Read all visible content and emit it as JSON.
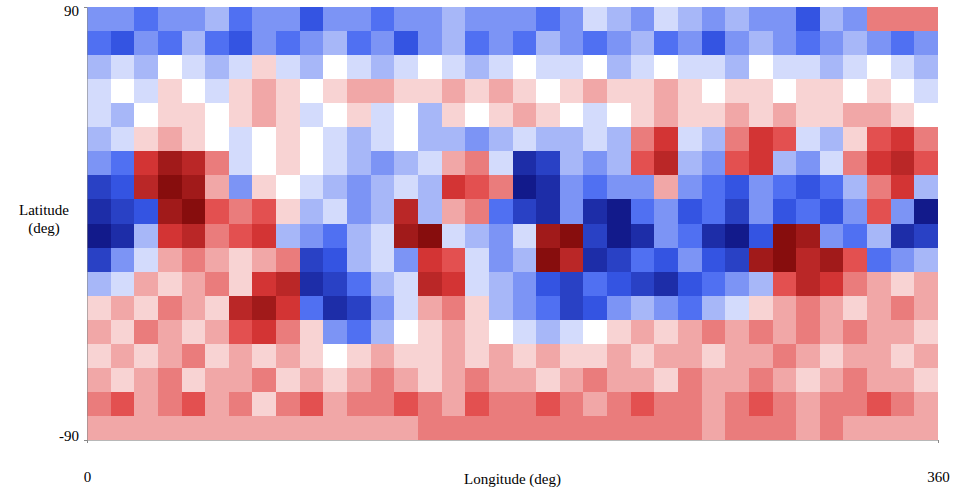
{
  "chart_data": {
    "type": "heatmap",
    "xlabel": "Longitude (deg)",
    "ylabel": "Latitude (deg)",
    "xlim": [
      0,
      360
    ],
    "ylim": [
      -90,
      90
    ],
    "xticks": [
      0,
      360
    ],
    "yticks": [
      -90,
      90
    ],
    "x_edges": [
      0,
      10,
      20,
      30,
      40,
      50,
      60,
      70,
      80,
      90,
      100,
      110,
      120,
      130,
      140,
      150,
      160,
      170,
      180,
      190,
      200,
      210,
      220,
      230,
      240,
      250,
      260,
      270,
      280,
      290,
      300,
      310,
      320,
      330,
      340,
      350,
      360
    ],
    "y_edges": [
      90,
      80,
      70,
      60,
      50,
      40,
      30,
      20,
      10,
      0,
      -10,
      -20,
      -30,
      -40,
      -50,
      -60,
      -70,
      -80,
      -90
    ],
    "color_range": [
      -9,
      9
    ],
    "values": [
      [
        -3,
        -3,
        -4,
        -3,
        -3,
        -2,
        -4,
        -3,
        -3,
        -5,
        -3,
        -3,
        -4,
        -3,
        -3,
        -2,
        -3,
        -3,
        -3,
        -4,
        -3,
        -1,
        -2,
        -3,
        -1,
        -2,
        -3,
        -2,
        -3,
        -3,
        -5,
        -2,
        -3,
        3,
        3,
        3
      ],
      [
        -4,
        -5,
        -3,
        -4,
        -2,
        -4,
        -5,
        -3,
        -4,
        -3,
        -2,
        -4,
        -3,
        -5,
        -3,
        -2,
        -4,
        -3,
        -4,
        -2,
        -3,
        -4,
        -3,
        -2,
        -4,
        -3,
        -5,
        -3,
        -2,
        -3,
        -4,
        -3,
        -2,
        -3,
        -4,
        -3
      ],
      [
        -2,
        -1,
        -2,
        0,
        -1,
        -2,
        -1,
        1,
        -1,
        -2,
        0,
        -1,
        -2,
        -1,
        0,
        -1,
        -2,
        -1,
        0,
        -1,
        -1,
        0,
        -2,
        -1,
        0,
        -1,
        -1,
        -2,
        0,
        -1,
        -1,
        -2,
        -1,
        0,
        -1,
        -2
      ],
      [
        -1,
        0,
        -1,
        1,
        0,
        -1,
        1,
        2,
        1,
        0,
        1,
        2,
        2,
        1,
        1,
        2,
        1,
        2,
        1,
        0,
        1,
        2,
        1,
        1,
        2,
        1,
        0,
        1,
        1,
        0,
        1,
        1,
        0,
        1,
        0,
        -1
      ],
      [
        -1,
        -2,
        0,
        1,
        1,
        0,
        1,
        2,
        1,
        -1,
        0,
        1,
        -1,
        0,
        -2,
        1,
        0,
        1,
        2,
        1,
        0,
        -1,
        0,
        1,
        2,
        1,
        1,
        2,
        1,
        2,
        1,
        1,
        2,
        2,
        1,
        0
      ],
      [
        -2,
        -1,
        1,
        2,
        1,
        0,
        -1,
        0,
        1,
        0,
        -1,
        -2,
        -1,
        0,
        -2,
        -2,
        -3,
        -2,
        -1,
        -2,
        -2,
        -1,
        -2,
        3,
        5,
        -1,
        -2,
        3,
        5,
        4,
        -1,
        -2,
        1,
        4,
        5,
        3
      ],
      [
        -3,
        -4,
        5,
        7,
        6,
        3,
        -1,
        0,
        1,
        0,
        -1,
        -2,
        -3,
        -2,
        -1,
        2,
        3,
        -1,
        -7,
        -6,
        -2,
        -3,
        -2,
        4,
        6,
        -2,
        -3,
        4,
        5,
        -2,
        -3,
        -1,
        3,
        5,
        6,
        4
      ],
      [
        -6,
        -5,
        6,
        8,
        7,
        2,
        -3,
        1,
        0,
        -1,
        -2,
        -3,
        -2,
        -1,
        -2,
        5,
        4,
        3,
        -8,
        -7,
        -3,
        -4,
        -3,
        -3,
        2,
        -3,
        -4,
        -5,
        -3,
        -4,
        -5,
        -4,
        -2,
        3,
        5,
        -2
      ],
      [
        -7,
        -6,
        -5,
        7,
        8,
        4,
        3,
        4,
        1,
        -2,
        -1,
        -3,
        -2,
        6,
        -2,
        2,
        3,
        -4,
        -6,
        -7,
        -3,
        -7,
        -8,
        -4,
        -3,
        -5,
        -4,
        -6,
        -3,
        -5,
        -4,
        -5,
        -3,
        4,
        -3,
        -8
      ],
      [
        -8,
        -7,
        -2,
        5,
        6,
        3,
        4,
        5,
        -2,
        -3,
        -4,
        -2,
        -1,
        7,
        8,
        -1,
        -2,
        -3,
        -1,
        7,
        8,
        -6,
        -8,
        -7,
        -3,
        -4,
        -7,
        -8,
        -5,
        8,
        7,
        -3,
        -4,
        -2,
        -7,
        -6
      ],
      [
        -6,
        -3,
        -1,
        2,
        3,
        2,
        1,
        2,
        3,
        -6,
        -5,
        -2,
        -1,
        -3,
        5,
        4,
        -1,
        -3,
        -2,
        8,
        6,
        -7,
        -6,
        -4,
        -5,
        -3,
        -5,
        -6,
        7,
        8,
        6,
        7,
        4,
        -4,
        -3,
        -2
      ],
      [
        -2,
        -1,
        2,
        1,
        2,
        3,
        1,
        5,
        6,
        -7,
        -6,
        -4,
        -2,
        -1,
        6,
        5,
        -1,
        -2,
        -3,
        -5,
        -6,
        -4,
        -5,
        -6,
        -7,
        -5,
        -4,
        -3,
        -2,
        4,
        6,
        5,
        3,
        2,
        1,
        2
      ],
      [
        1,
        2,
        1,
        3,
        2,
        1,
        6,
        7,
        5,
        -4,
        -7,
        -6,
        -3,
        -1,
        2,
        3,
        1,
        -2,
        -3,
        -4,
        -6,
        -5,
        -3,
        -2,
        -3,
        -4,
        -2,
        -1,
        1,
        2,
        3,
        2,
        1,
        2,
        3,
        2
      ],
      [
        2,
        1,
        3,
        2,
        1,
        2,
        4,
        5,
        3,
        1,
        -3,
        -4,
        -2,
        0,
        1,
        2,
        1,
        0,
        -1,
        -2,
        -1,
        0,
        1,
        2,
        1,
        2,
        3,
        2,
        3,
        2,
        3,
        2,
        3,
        2,
        2,
        1
      ],
      [
        1,
        2,
        1,
        2,
        3,
        1,
        2,
        1,
        2,
        1,
        0,
        1,
        2,
        1,
        1,
        2,
        1,
        2,
        1,
        2,
        1,
        1,
        2,
        1,
        2,
        2,
        1,
        2,
        2,
        3,
        2,
        1,
        2,
        2,
        1,
        2
      ],
      [
        2,
        1,
        2,
        3,
        1,
        2,
        2,
        3,
        1,
        2,
        1,
        2,
        3,
        2,
        1,
        2,
        3,
        2,
        2,
        1,
        2,
        3,
        2,
        2,
        1,
        3,
        2,
        2,
        3,
        2,
        1,
        2,
        3,
        2,
        2,
        1
      ],
      [
        3,
        4,
        2,
        3,
        4,
        2,
        3,
        1,
        3,
        4,
        2,
        3,
        3,
        4,
        3,
        2,
        4,
        3,
        3,
        4,
        3,
        2,
        3,
        4,
        3,
        3,
        2,
        3,
        4,
        3,
        2,
        3,
        3,
        4,
        3,
        2
      ],
      [
        2,
        2,
        2,
        2,
        2,
        2,
        2,
        2,
        2,
        2,
        2,
        2,
        2,
        2,
        3,
        3,
        3,
        3,
        3,
        3,
        3,
        3,
        3,
        3,
        3,
        3,
        2,
        3,
        3,
        3,
        2,
        3,
        2,
        2,
        2,
        2
      ]
    ]
  }
}
